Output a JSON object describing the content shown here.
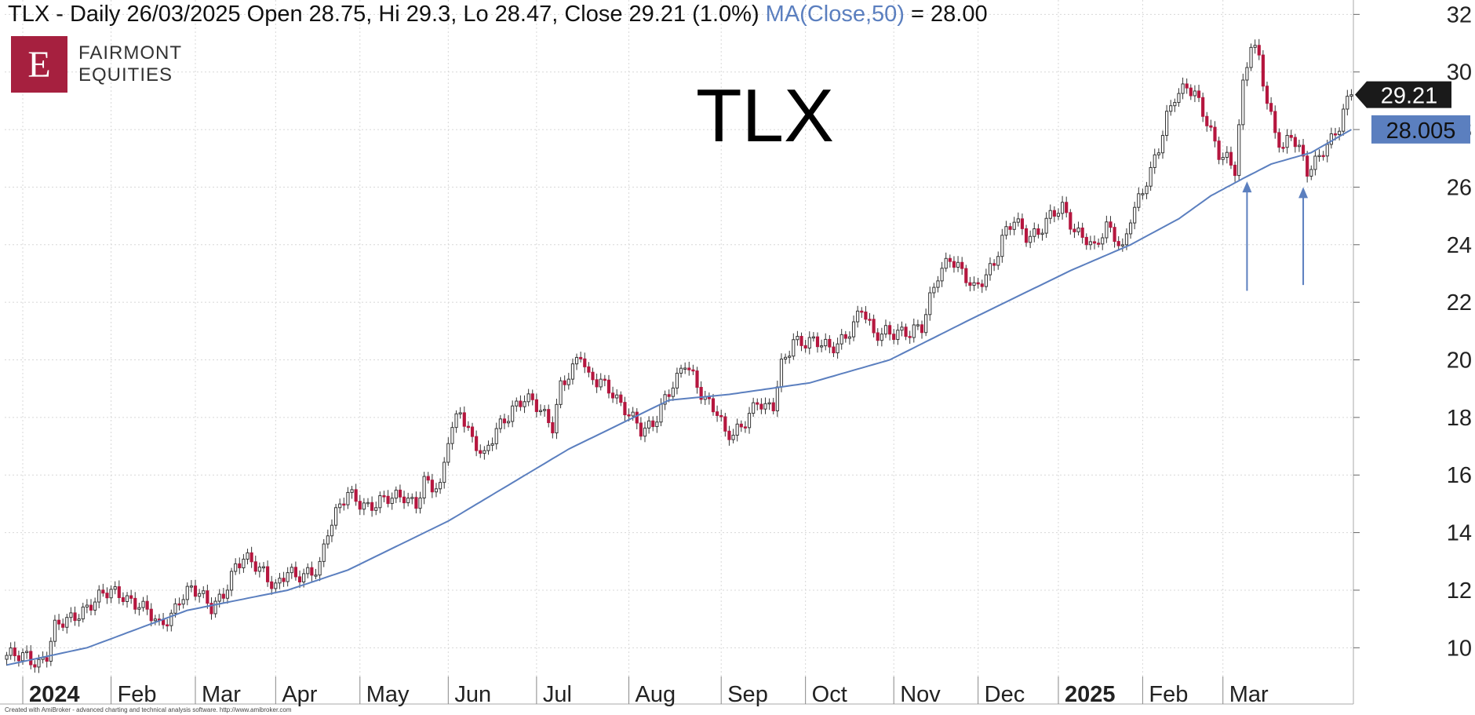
{
  "header": {
    "main": "TLX - Daily 26/03/2025 Open 28.75, Hi 29.3, Lo 28.47, Close 29.21 (1.0%)",
    "ma": "MA(Close,50)",
    "ma_value": " = 28.00"
  },
  "logo": {
    "letter": "E",
    "line1": "FAIRMONT",
    "line2": "EQUITIES"
  },
  "footer": "Created with AmiBroker - advanced charting and technical analysis software. http://www.amibroker.com",
  "colors": {
    "up_candle": "#ffffff",
    "down_candle": "#b5173f",
    "candle_outline": "#333333",
    "ma_line": "#5b7fbf",
    "arrow": "#5b7fbf",
    "grid": "#d8d8d8",
    "price_label_bg": "#1a1a1a",
    "ma_label_bg": "#5b7fbf"
  },
  "chart_data": {
    "type": "candlestick",
    "title": "TLX",
    "ylim": [
      9,
      32.5
    ],
    "y_ticks": [
      10,
      12,
      14,
      16,
      18,
      20,
      22,
      24,
      26,
      28,
      30,
      32
    ],
    "grid": true,
    "x_month_labels": [
      {
        "label": "2024",
        "bold": true,
        "index": 4
      },
      {
        "label": "Feb",
        "bold": false,
        "index": 26
      },
      {
        "label": "Mar",
        "bold": false,
        "index": 47
      },
      {
        "label": "Apr",
        "bold": false,
        "index": 67
      },
      {
        "label": "May",
        "bold": false,
        "index": 88
      },
      {
        "label": "Jun",
        "bold": false,
        "index": 110
      },
      {
        "label": "Jul",
        "bold": false,
        "index": 132
      },
      {
        "label": "Aug",
        "bold": false,
        "index": 155
      },
      {
        "label": "Sep",
        "bold": false,
        "index": 178
      },
      {
        "label": "Oct",
        "bold": false,
        "index": 199
      },
      {
        "label": "Nov",
        "bold": false,
        "index": 221
      },
      {
        "label": "Dec",
        "bold": false,
        "index": 242
      },
      {
        "label": "2025",
        "bold": true,
        "index": 262
      },
      {
        "label": "Feb",
        "bold": false,
        "index": 283
      },
      {
        "label": "Mar",
        "bold": false,
        "index": 303
      }
    ],
    "close_keypoints": [
      [
        0,
        9.6
      ],
      [
        5,
        9.8
      ],
      [
        8,
        9.5
      ],
      [
        10,
        9.7
      ],
      [
        12,
        10.6
      ],
      [
        18,
        11.3
      ],
      [
        22,
        11.6
      ],
      [
        26,
        11.9
      ],
      [
        29,
        11.9
      ],
      [
        33,
        11.5
      ],
      [
        38,
        10.7
      ],
      [
        41,
        11.2
      ],
      [
        43,
        11.8
      ],
      [
        46,
        12.0
      ],
      [
        51,
        11.4
      ],
      [
        54,
        12.0
      ],
      [
        57,
        12.8
      ],
      [
        59,
        13.0
      ],
      [
        64,
        12.7
      ],
      [
        67,
        12.2
      ],
      [
        70,
        12.6
      ],
      [
        72,
        12.3
      ],
      [
        76,
        12.7
      ],
      [
        78,
        13.0
      ],
      [
        80,
        14.1
      ],
      [
        83,
        14.8
      ],
      [
        85,
        15.3
      ],
      [
        90,
        15.0
      ],
      [
        96,
        15.1
      ],
      [
        99,
        15.3
      ],
      [
        102,
        15.1
      ],
      [
        104,
        15.8
      ],
      [
        106,
        15.5
      ],
      [
        108,
        15.4
      ],
      [
        110,
        17.3
      ],
      [
        113,
        18.4
      ],
      [
        116,
        17.2
      ],
      [
        119,
        16.5
      ],
      [
        122,
        17.6
      ],
      [
        126,
        18.4
      ],
      [
        129,
        18.6
      ],
      [
        133,
        18.2
      ],
      [
        136,
        17.8
      ],
      [
        138,
        19.2
      ],
      [
        141,
        19.6
      ],
      [
        143,
        20.1
      ],
      [
        145,
        19.3
      ],
      [
        148,
        19.4
      ],
      [
        151,
        18.9
      ],
      [
        153,
        18.3
      ],
      [
        155,
        18.0
      ],
      [
        158,
        17.6
      ],
      [
        161,
        17.9
      ],
      [
        164,
        18.6
      ],
      [
        167,
        19.2
      ],
      [
        169,
        19.9
      ],
      [
        171,
        19.5
      ],
      [
        174,
        18.7
      ],
      [
        177,
        18.1
      ],
      [
        179,
        17.3
      ],
      [
        181,
        17.4
      ],
      [
        184,
        18.0
      ],
      [
        187,
        18.6
      ],
      [
        189,
        18.2
      ],
      [
        191,
        18.3
      ],
      [
        193,
        19.8
      ],
      [
        196,
        20.8
      ],
      [
        199,
        20.6
      ],
      [
        202,
        20.5
      ],
      [
        205,
        20.4
      ],
      [
        208,
        20.8
      ],
      [
        211,
        21.2
      ],
      [
        213,
        21.7
      ],
      [
        216,
        20.8
      ],
      [
        219,
        21.1
      ],
      [
        222,
        21.0
      ],
      [
        225,
        20.8
      ],
      [
        228,
        21.1
      ],
      [
        230,
        22.2
      ],
      [
        232,
        23.1
      ],
      [
        235,
        23.5
      ],
      [
        238,
        22.9
      ],
      [
        241,
        22.5
      ],
      [
        243,
        22.9
      ],
      [
        246,
        23.4
      ],
      [
        248,
        24.1
      ],
      [
        251,
        24.8
      ],
      [
        254,
        24.4
      ],
      [
        257,
        24.5
      ],
      [
        260,
        24.9
      ],
      [
        263,
        25.2
      ],
      [
        266,
        24.6
      ],
      [
        269,
        24.3
      ],
      [
        271,
        23.8
      ],
      [
        274,
        24.5
      ],
      [
        276,
        24.3
      ],
      [
        278,
        23.9
      ],
      [
        280,
        25.1
      ],
      [
        283,
        25.8
      ],
      [
        285,
        26.4
      ],
      [
        287,
        27.3
      ],
      [
        289,
        28.5
      ],
      [
        291,
        29.3
      ],
      [
        294,
        29.5
      ],
      [
        296,
        29.1
      ],
      [
        299,
        28.2
      ],
      [
        302,
        27.3
      ],
      [
        304,
        27.1
      ],
      [
        306,
        26.6
      ],
      [
        308,
        29.4
      ],
      [
        310,
        30.9
      ],
      [
        312,
        30.5
      ],
      [
        314,
        29.1
      ],
      [
        316,
        28.0
      ],
      [
        318,
        27.3
      ],
      [
        320,
        27.7
      ],
      [
        322,
        27.2
      ],
      [
        324,
        26.6
      ],
      [
        326,
        27.0
      ],
      [
        328,
        27.4
      ],
      [
        330,
        27.6
      ],
      [
        332,
        28.0
      ],
      [
        334,
        28.9
      ],
      [
        335,
        29.21
      ]
    ],
    "ma_keypoints": [
      [
        0,
        9.4
      ],
      [
        20,
        10.0
      ],
      [
        45,
        11.3
      ],
      [
        70,
        12.0
      ],
      [
        85,
        12.7
      ],
      [
        110,
        14.4
      ],
      [
        140,
        16.9
      ],
      [
        165,
        18.6
      ],
      [
        180,
        18.8
      ],
      [
        200,
        19.2
      ],
      [
        220,
        20.0
      ],
      [
        240,
        21.4
      ],
      [
        265,
        23.1
      ],
      [
        280,
        24.0
      ],
      [
        292,
        24.9
      ],
      [
        300,
        25.7
      ],
      [
        308,
        26.3
      ],
      [
        315,
        26.8
      ],
      [
        325,
        27.2
      ],
      [
        335,
        28.0
      ]
    ],
    "last_close": 29.21,
    "last_close_label": "29.21",
    "ma_last": 28.005,
    "ma_last_label": "28.005",
    "arrows": [
      {
        "index": 309,
        "from": 22.4,
        "to": 26.2
      },
      {
        "index": 323,
        "from": 22.6,
        "to": 26.0
      }
    ]
  }
}
